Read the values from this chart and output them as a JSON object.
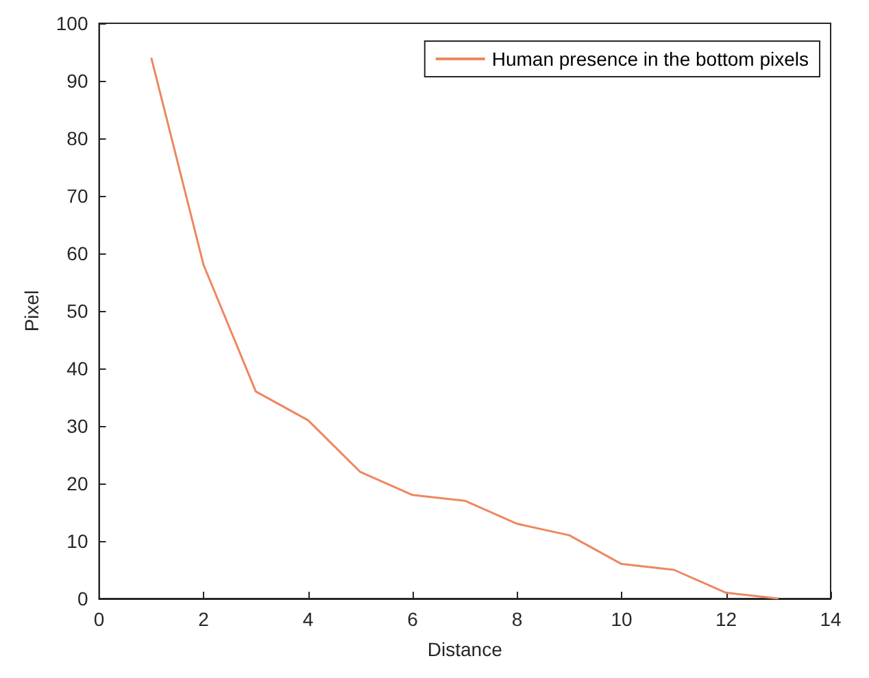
{
  "chart_data": {
    "type": "line",
    "xlabel": "Distance",
    "ylabel": "Pixel",
    "x": [
      1,
      2,
      3,
      4,
      5,
      6,
      7,
      8,
      9,
      10,
      11,
      12,
      13
    ],
    "series": [
      {
        "name": "Human presence in the bottom pixels",
        "color": "#ee8660",
        "values": [
          94,
          58,
          36,
          31,
          22,
          18,
          17,
          13,
          11,
          6,
          5,
          1,
          0
        ]
      }
    ],
    "xlim": [
      0,
      14
    ],
    "xticks": [
      0,
      2,
      4,
      6,
      8,
      10,
      12,
      14
    ],
    "ylim": [
      0,
      100
    ],
    "yticks": [
      0,
      10,
      20,
      30,
      40,
      50,
      60,
      70,
      80,
      90,
      100
    ],
    "grid": false,
    "legend": "top right",
    "marker": "none",
    "line_style": "solid"
  }
}
